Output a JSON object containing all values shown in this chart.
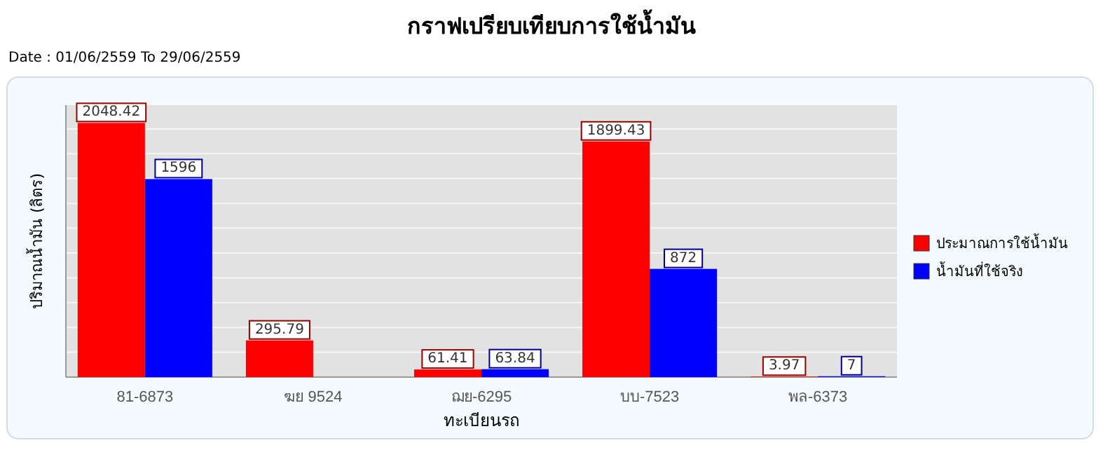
{
  "chart_data": {
    "type": "bar",
    "title": "กราฟเปรียบเทียบการใช้น้ำมัน",
    "subtitle": "Date : 01/06/2559 To 29/06/2559",
    "xlabel": "ทะเบียนรถ",
    "ylabel": "ปริมาณน้ำมัน (ลิตร)",
    "categories": [
      "81-6873",
      "ฆย 9524",
      "ฌย-6295",
      "บบ-7523",
      "พล-6373"
    ],
    "series": [
      {
        "name": "ประมาณการใช้น้ำมัน",
        "color": "#ff0000",
        "values": [
          2048.42,
          295.79,
          61.41,
          1899.43,
          3.97
        ]
      },
      {
        "name": "น้ำมันที่ใช้จริง",
        "color": "#0000ff",
        "values": [
          1596,
          null,
          63.84,
          872,
          7
        ]
      }
    ],
    "data_labels": true,
    "grid": "y",
    "legend": "right",
    "tick_labels": "x"
  }
}
